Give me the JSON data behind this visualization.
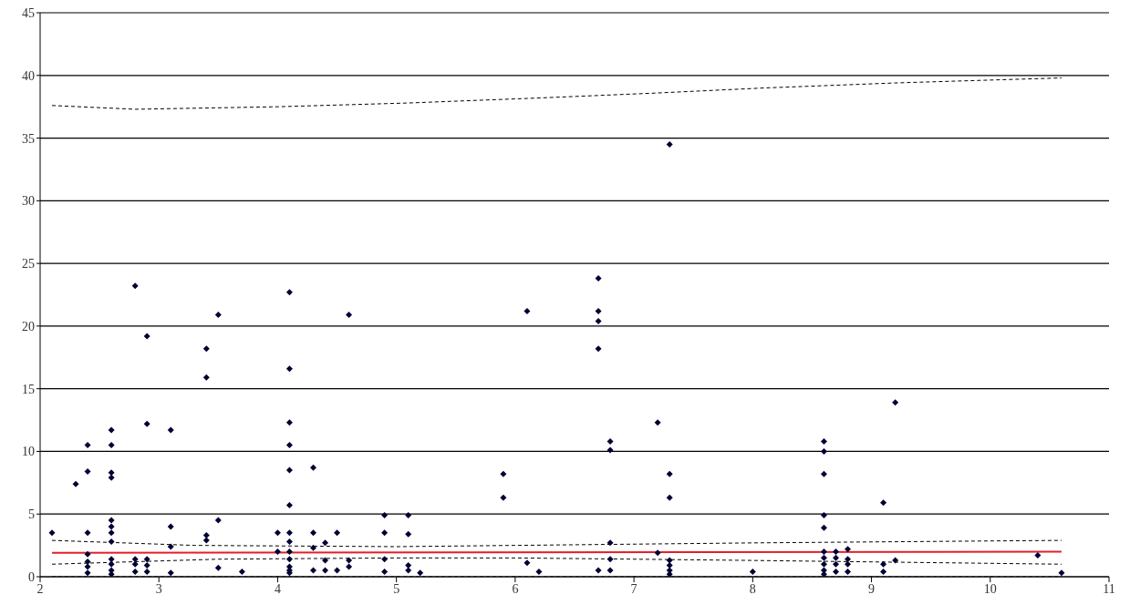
{
  "chart_data": {
    "type": "scatter",
    "xlim": [
      2,
      11
    ],
    "xticks": [
      2,
      3,
      4,
      5,
      6,
      7,
      8,
      9,
      10,
      11
    ],
    "ylim": [
      0,
      45
    ],
    "yticks": [
      0,
      5,
      10,
      15,
      20,
      25,
      30,
      35,
      40,
      45
    ],
    "grid": "y",
    "series": [
      {
        "color": "#000033",
        "marker": "diamond",
        "x": [
          2.1,
          2.3,
          2.4,
          2.4,
          2.4,
          2.4,
          2.4,
          2.4,
          2.4,
          2.6,
          2.6,
          2.6,
          2.6,
          2.6,
          2.6,
          2.6,
          2.6,
          2.6,
          2.6,
          2.6,
          2.6,
          2.8,
          2.8,
          2.8,
          2.8,
          2.9,
          2.9,
          2.9,
          2.9,
          2.9,
          3.1,
          3.1,
          3.1,
          3.1,
          3.4,
          3.4,
          3.4,
          3.4,
          3.5,
          3.5,
          3.5,
          3.7,
          4.0,
          4.0,
          4.1,
          4.1,
          4.1,
          4.1,
          4.1,
          4.1,
          4.1,
          4.1,
          4.1,
          4.1,
          4.1,
          4.1,
          4.1,
          4.3,
          4.3,
          4.3,
          4.3,
          4.4,
          4.4,
          4.4,
          4.5,
          4.5,
          4.6,
          4.6,
          4.6,
          4.9,
          4.9,
          4.9,
          4.9,
          5.1,
          5.1,
          5.1,
          5.1,
          5.2,
          5.9,
          5.9,
          6.1,
          6.1,
          6.2,
          6.7,
          6.7,
          6.7,
          6.7,
          6.7,
          6.8,
          6.8,
          6.8,
          6.8,
          6.8,
          7.2,
          7.2,
          7.3,
          7.3,
          7.3,
          7.3,
          7.3,
          7.3,
          7.3,
          8.0,
          8.6,
          8.6,
          8.6,
          8.6,
          8.6,
          8.6,
          8.6,
          8.6,
          8.6,
          8.6,
          8.7,
          8.7,
          8.7,
          8.7,
          8.8,
          8.8,
          8.8,
          8.8,
          9.1,
          9.1,
          9.1,
          9.2,
          9.2,
          10.4,
          10.6
        ],
        "values": [
          3.5,
          7.4,
          10.5,
          8.4,
          3.5,
          1.8,
          1.2,
          0.8,
          0.3,
          11.7,
          10.5,
          8.3,
          7.9,
          4.5,
          4.0,
          3.5,
          2.8,
          1.4,
          1.0,
          0.5,
          0.2,
          23.2,
          1.4,
          1.0,
          0.4,
          19.2,
          12.2,
          1.4,
          0.9,
          0.4,
          11.7,
          4.0,
          2.4,
          0.3,
          18.2,
          15.9,
          3.3,
          2.9,
          20.9,
          4.5,
          0.7,
          0.4,
          3.5,
          2.0,
          22.7,
          16.6,
          12.3,
          10.5,
          8.5,
          5.7,
          3.5,
          2.8,
          2.0,
          1.4,
          0.8,
          0.5,
          0.3,
          8.7,
          3.5,
          2.3,
          0.5,
          2.7,
          1.3,
          0.5,
          3.5,
          0.5,
          20.9,
          1.3,
          0.8,
          4.9,
          3.5,
          1.4,
          0.4,
          4.9,
          3.4,
          0.9,
          0.5,
          0.3,
          8.2,
          6.3,
          21.2,
          1.1,
          0.4,
          23.8,
          21.2,
          20.4,
          18.2,
          0.5,
          10.8,
          10.1,
          2.7,
          1.4,
          0.5,
          12.3,
          1.9,
          34.5,
          8.2,
          6.3,
          1.3,
          0.9,
          0.5,
          0.2,
          0.4,
          10.8,
          10.0,
          8.2,
          4.9,
          3.9,
          2.0,
          1.5,
          1.0,
          0.5,
          0.2,
          2.0,
          1.5,
          1.0,
          0.4,
          2.2,
          1.4,
          1.0,
          0.4,
          5.9,
          1.0,
          0.4,
          13.9,
          1.3,
          1.7,
          0.3
        ]
      },
      {
        "type": "line",
        "color": "#e0202a",
        "line_style": "solid",
        "x": [
          2.1,
          10.6
        ],
        "values": [
          1.9,
          2.0
        ]
      },
      {
        "type": "line",
        "color": "#000000",
        "line_style": "dashed",
        "x": [
          2.1,
          2.8,
          4.0,
          5.1,
          6.2,
          7.2,
          8.1,
          9.2,
          10.6
        ],
        "values": [
          37.6,
          37.3,
          37.5,
          37.8,
          38.2,
          38.6,
          39.0,
          39.4,
          39.8
        ]
      },
      {
        "type": "line",
        "color": "#000000",
        "line_style": "dashed",
        "x": [
          2.1,
          3.3,
          5.0,
          6.0,
          8.0,
          10.6
        ],
        "values": [
          2.9,
          2.5,
          2.4,
          2.5,
          2.7,
          2.9
        ]
      },
      {
        "type": "line",
        "color": "#000000",
        "line_style": "dashed",
        "x": [
          2.1,
          3.5,
          5.0,
          6.0,
          8.0,
          10.6
        ],
        "values": [
          1.0,
          1.4,
          1.5,
          1.5,
          1.3,
          1.0
        ]
      },
      {
        "type": "line",
        "color": "#000000",
        "line_style": "dashed",
        "x": [
          2.1,
          10.6
        ],
        "values": [
          0,
          0
        ]
      }
    ]
  }
}
